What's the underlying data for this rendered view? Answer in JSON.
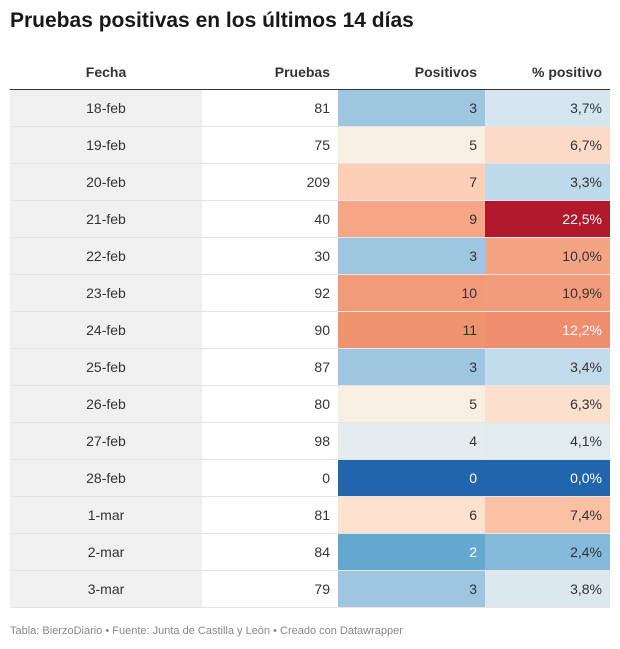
{
  "title": "Pruebas positivas en los últimos 14 días",
  "footer": "Tabla: BierzoDiario • Fuente: Junta de Castilla y León • Creado con Datawrapper",
  "chart_data": {
    "type": "table",
    "columns": [
      "Fecha",
      "Pruebas",
      "Positivos",
      "% positivo"
    ],
    "rows": [
      {
        "fecha": "18-feb",
        "pruebas": "81",
        "positivos": "3",
        "pct": "3,7%",
        "pos_color": "#9fc6e0",
        "pct_color": "#d5e6ef",
        "pos_light_text": false,
        "pct_light_text": false
      },
      {
        "fecha": "19-feb",
        "pruebas": "75",
        "positivos": "5",
        "pct": "6,7%",
        "pos_color": "#f8efe3",
        "pct_color": "#fcdac8",
        "pos_light_text": false,
        "pct_light_text": false
      },
      {
        "fecha": "20-feb",
        "pruebas": "209",
        "positivos": "7",
        "pct": "3,3%",
        "pos_color": "#fdcfb6",
        "pct_color": "#bed9ea",
        "pos_light_text": false,
        "pct_light_text": false
      },
      {
        "fecha": "21-feb",
        "pruebas": "40",
        "positivos": "9",
        "pct": "22,5%",
        "pos_color": "#f6a587",
        "pct_color": "#b2182b",
        "pos_light_text": false,
        "pct_light_text": true
      },
      {
        "fecha": "22-feb",
        "pruebas": "30",
        "positivos": "3",
        "pct": "10,0%",
        "pos_color": "#9fc6e0",
        "pct_color": "#f4a482",
        "pos_light_text": false,
        "pct_light_text": false
      },
      {
        "fecha": "23-feb",
        "pruebas": "92",
        "positivos": "10",
        "pct": "10,9%",
        "pos_color": "#f29b7b",
        "pct_color": "#f29c7c",
        "pos_light_text": false,
        "pct_light_text": false
      },
      {
        "fecha": "24-feb",
        "pruebas": "90",
        "positivos": "11",
        "pct": "12,2%",
        "pos_color": "#f0936f",
        "pct_color": "#ee8e6e",
        "pos_light_text": false,
        "pct_light_text": true
      },
      {
        "fecha": "25-feb",
        "pruebas": "87",
        "positivos": "3",
        "pct": "3,4%",
        "pos_color": "#9fc6e0",
        "pct_color": "#c2dcec",
        "pos_light_text": false,
        "pct_light_text": false
      },
      {
        "fecha": "26-feb",
        "pruebas": "80",
        "positivos": "5",
        "pct": "6,3%",
        "pos_color": "#f8efe3",
        "pct_color": "#fcdfcd",
        "pos_light_text": false,
        "pct_light_text": false
      },
      {
        "fecha": "27-feb",
        "pruebas": "98",
        "positivos": "4",
        "pct": "4,1%",
        "pos_color": "#e4ecee",
        "pct_color": "#e2ebee",
        "pos_light_text": false,
        "pct_light_text": false
      },
      {
        "fecha": "28-feb",
        "pruebas": "0",
        "positivos": "0",
        "pct": "0,0%",
        "pos_color": "#2165ac",
        "pct_color": "#2166ac",
        "pos_light_text": true,
        "pct_light_text": true
      },
      {
        "fecha": "1-mar",
        "pruebas": "81",
        "positivos": "6",
        "pct": "7,4%",
        "pos_color": "#fde2d0",
        "pct_color": "#fac1a4",
        "pos_light_text": false,
        "pct_light_text": false
      },
      {
        "fecha": "2-mar",
        "pruebas": "84",
        "positivos": "2",
        "pct": "2,4%",
        "pos_color": "#64a8d0",
        "pct_color": "#86badb",
        "pos_light_text": true,
        "pct_light_text": false
      },
      {
        "fecha": "3-mar",
        "pruebas": "79",
        "positivos": "3",
        "pct": "3,8%",
        "pos_color": "#9fc6e0",
        "pct_color": "#dbe8ee",
        "pos_light_text": false,
        "pct_light_text": false
      }
    ]
  }
}
